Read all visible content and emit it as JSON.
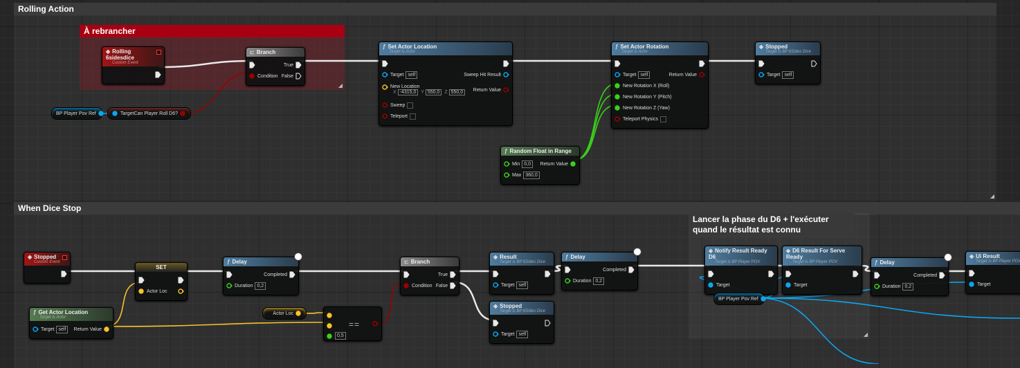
{
  "comments": {
    "rolling_action": "Rolling Action",
    "a_rebrancher": "À rebrancher",
    "when_dice_stop": "When Dice Stop",
    "lancer": "Lancer la phase du D6 + l'exécuter quand le résultat est connu"
  },
  "colors": {
    "exec": "#e8e8e8",
    "object": "#0ba6f0",
    "bool": "#9a0000",
    "vector": "#f9c22a",
    "float": "#3ad11a",
    "comment_red": "#a80012"
  },
  "nodes": {
    "rolling": {
      "title": "Rolling 6sidesdice",
      "subtitle": "Custom Event",
      "kind": "event",
      "inputs": [],
      "outputs": [
        {
          "type": "exec",
          "label": ""
        }
      ]
    },
    "branch1": {
      "title": "Branch",
      "kind": "macro",
      "inputs": [
        {
          "type": "exec",
          "label": ""
        },
        {
          "type": "bool",
          "label": "Condition"
        }
      ],
      "outputs": [
        {
          "type": "exec",
          "label": "True"
        },
        {
          "type": "exec",
          "label": "False",
          "hollow": true
        }
      ]
    },
    "povref1": {
      "kind": "getter",
      "outputs": [
        {
          "type": "object",
          "label": "BP Player Pov Ref"
        }
      ]
    },
    "canroll": {
      "kind": "pill",
      "inputs": [
        {
          "type": "object",
          "label": "Target"
        }
      ],
      "outputs": [
        {
          "type": "bool",
          "label": "Can Player Roll D6?"
        }
      ]
    },
    "setloc": {
      "title": "Set Actor Location",
      "subtitle": "Target is Actor",
      "kind": "function",
      "inputs": [
        {
          "type": "exec",
          "label": ""
        },
        {
          "type": "object",
          "label": "Target",
          "value": "self",
          "hollow": true
        },
        {
          "type": "vector",
          "label": "New Location",
          "vector": [
            "-4315,0",
            "550,0",
            "550,0"
          ],
          "axes": [
            "X",
            "Y",
            "Z"
          ],
          "hollow": true
        },
        {
          "type": "bool",
          "label": "Sweep",
          "check": true,
          "hollow": true
        },
        {
          "type": "bool",
          "label": "Teleport",
          "check": true,
          "hollow": true
        }
      ],
      "outputs": [
        {
          "type": "exec",
          "label": ""
        },
        {
          "type": "object",
          "label": "Sweep Hit Result",
          "hollow": true
        },
        {
          "type": "bool",
          "label": "Return Value",
          "hollow": true
        }
      ]
    },
    "setrot": {
      "title": "Set Actor Rotation",
      "subtitle": "Target is Actor",
      "kind": "function",
      "inputs": [
        {
          "type": "exec",
          "label": ""
        },
        {
          "type": "object",
          "label": "Target",
          "value": "self",
          "hollow": true
        },
        {
          "type": "float",
          "label": "New Rotation X (Roll)"
        },
        {
          "type": "float",
          "label": "New Rotation Y (Pitch)"
        },
        {
          "type": "float",
          "label": "New Rotation Z (Yaw)"
        },
        {
          "type": "bool",
          "label": "Teleport Physics",
          "check": true,
          "hollow": true
        }
      ],
      "outputs": [
        {
          "type": "exec",
          "label": ""
        },
        {
          "type": "bool",
          "label": "Return Value",
          "hollow": true
        }
      ]
    },
    "stopped1": {
      "title": "Stopped",
      "subtitle": "Target is BP 6Sides Dice",
      "kind": "function",
      "event_icon": true,
      "inputs": [
        {
          "type": "exec",
          "label": ""
        },
        {
          "type": "object",
          "label": "Target",
          "value": "self",
          "hollow": true
        }
      ],
      "outputs": [
        {
          "type": "exec",
          "label": "",
          "hollow": true
        }
      ]
    },
    "randf": {
      "title": "Random Float in Range",
      "kind": "pure",
      "inputs": [
        {
          "type": "float",
          "label": "Min",
          "value": "0,0",
          "hollow": true
        },
        {
          "type": "float",
          "label": "Max",
          "value": "360,0",
          "hollow": true
        }
      ],
      "outputs": [
        {
          "type": "float",
          "label": "Return Value"
        }
      ]
    },
    "stoppedEv": {
      "title": "Stopped",
      "subtitle": "Custom Event",
      "kind": "event",
      "inputs": [],
      "outputs": [
        {
          "type": "exec",
          "label": ""
        }
      ]
    },
    "set": {
      "title": "SET",
      "kind": "set",
      "inputs": [
        {
          "type": "exec",
          "label": ""
        },
        {
          "type": "vector",
          "label": "Actor Loc"
        }
      ],
      "outputs": [
        {
          "type": "exec",
          "label": ""
        },
        {
          "type": "vector",
          "label": "",
          "hollow": true
        }
      ]
    },
    "delay1": {
      "title": "Delay",
      "kind": "function",
      "latent": true,
      "inputs": [
        {
          "type": "exec",
          "label": ""
        },
        {
          "type": "float",
          "label": "Duration",
          "value": "0,2",
          "hollow": true
        }
      ],
      "outputs": [
        {
          "type": "exec",
          "label": "Completed"
        }
      ]
    },
    "getloc": {
      "title": "Get Actor Location",
      "subtitle": "Target is Actor",
      "kind": "pure",
      "inputs": [
        {
          "type": "object",
          "label": "Target",
          "value": "self",
          "hollow": true
        }
      ],
      "outputs": [
        {
          "type": "vector",
          "label": "Return Value"
        }
      ]
    },
    "actorloc": {
      "kind": "getter",
      "outputs": [
        {
          "type": "vector",
          "label": "Actor Loc"
        }
      ]
    },
    "eq": {
      "kind": "operator",
      "label": "==",
      "inputs": [
        {
          "type": "vector",
          "label": ""
        },
        {
          "type": "vector",
          "label": ""
        },
        {
          "type": "float",
          "label": "",
          "value": "0,5"
        }
      ],
      "outputs": [
        {
          "type": "bool",
          "label": ""
        }
      ]
    },
    "branch2": {
      "title": "Branch",
      "kind": "macro",
      "inputs": [
        {
          "type": "exec",
          "label": ""
        },
        {
          "type": "bool",
          "label": "Condition"
        }
      ],
      "outputs": [
        {
          "type": "exec",
          "label": "True"
        },
        {
          "type": "exec",
          "label": "False"
        }
      ]
    },
    "result": {
      "title": "Result",
      "subtitle": "Target is BP 6Sides Dice",
      "kind": "function",
      "event_icon": true,
      "inputs": [
        {
          "type": "exec",
          "label": ""
        },
        {
          "type": "object",
          "label": "Target",
          "value": "self",
          "hollow": true
        }
      ],
      "outputs": [
        {
          "type": "exec",
          "label": ""
        }
      ]
    },
    "stopped2": {
      "title": "Stopped",
      "subtitle": "Target is BP 6Sides Dice",
      "kind": "function",
      "event_icon": true,
      "inputs": [
        {
          "type": "exec",
          "label": ""
        },
        {
          "type": "object",
          "label": "Target",
          "value": "self",
          "hollow": true
        }
      ],
      "outputs": [
        {
          "type": "exec",
          "label": "",
          "hollow": true
        }
      ]
    },
    "delay2": {
      "title": "Delay",
      "kind": "function",
      "latent": true,
      "inputs": [
        {
          "type": "exec",
          "label": ""
        },
        {
          "type": "float",
          "label": "Duration",
          "value": "0,2",
          "hollow": true
        }
      ],
      "outputs": [
        {
          "type": "exec",
          "label": "Completed"
        }
      ]
    },
    "notify": {
      "title": "Notify Result Ready D6",
      "subtitle": "Target is BP Player POV",
      "kind": "function",
      "event_icon": true,
      "inputs": [
        {
          "type": "exec",
          "label": ""
        },
        {
          "type": "object",
          "label": "Target"
        }
      ],
      "outputs": [
        {
          "type": "exec",
          "label": ""
        }
      ]
    },
    "d6serve": {
      "title": "D6 Result For Serve Ready",
      "subtitle": "Target is BP Player POV",
      "kind": "function",
      "event_icon": true,
      "inputs": [
        {
          "type": "exec",
          "label": ""
        },
        {
          "type": "object",
          "label": "Target"
        }
      ],
      "outputs": [
        {
          "type": "exec",
          "label": ""
        }
      ]
    },
    "povref2": {
      "kind": "getter",
      "outputs": [
        {
          "type": "object",
          "label": "BP Player Pov Ref"
        }
      ]
    },
    "delay3": {
      "title": "Delay",
      "kind": "function",
      "latent": true,
      "inputs": [
        {
          "type": "exec",
          "label": ""
        },
        {
          "type": "float",
          "label": "Duration",
          "value": "0,2",
          "hollow": true
        }
      ],
      "outputs": [
        {
          "type": "exec",
          "label": "Completed"
        }
      ]
    },
    "uiresult": {
      "title": "Ui Result",
      "subtitle": "Target is BP Player POV",
      "kind": "function",
      "event_icon": true,
      "inputs": [
        {
          "type": "exec",
          "label": ""
        },
        {
          "type": "object",
          "label": "Target"
        }
      ],
      "outputs": []
    }
  }
}
